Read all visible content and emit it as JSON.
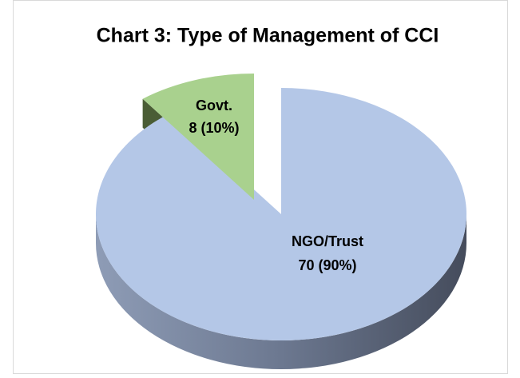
{
  "chart_data": {
    "type": "pie",
    "title": "Chart 3: Type of Management of CCI",
    "categories": [
      "NGO/Trust",
      "Govt."
    ],
    "values": [
      70,
      8
    ],
    "value_labels": [
      "70 (90%)",
      "8 (10%)"
    ],
    "colors": [
      "#b4c7e7",
      "#a9d18e"
    ]
  }
}
